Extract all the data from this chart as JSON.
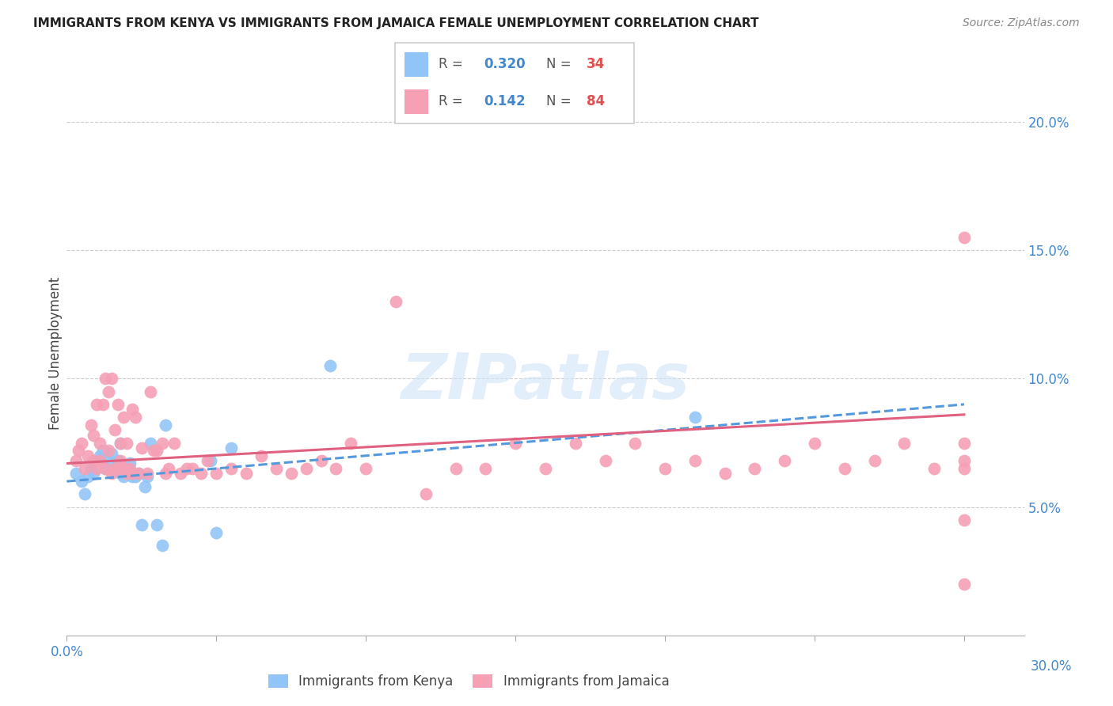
{
  "title": "IMMIGRANTS FROM KENYA VS IMMIGRANTS FROM JAMAICA FEMALE UNEMPLOYMENT CORRELATION CHART",
  "source": "Source: ZipAtlas.com",
  "ylabel": "Female Unemployment",
  "yticks": [
    0.05,
    0.1,
    0.15,
    0.2
  ],
  "ytick_labels": [
    "5.0%",
    "10.0%",
    "15.0%",
    "20.0%"
  ],
  "xlim": [
    0.0,
    0.32
  ],
  "ylim": [
    0.0,
    0.22
  ],
  "kenya_R": 0.32,
  "kenya_N": 34,
  "jamaica_R": 0.142,
  "jamaica_N": 84,
  "kenya_color": "#92c5f7",
  "jamaica_color": "#f5a0b5",
  "kenya_trend_color": "#5599dd",
  "jamaica_trend_color": "#e06080",
  "watermark": "ZIPatlas",
  "kenya_scatter_x": [
    0.003,
    0.005,
    0.006,
    0.007,
    0.008,
    0.009,
    0.01,
    0.011,
    0.012,
    0.013,
    0.014,
    0.015,
    0.016,
    0.017,
    0.018,
    0.018,
    0.019,
    0.02,
    0.021,
    0.022,
    0.023,
    0.024,
    0.025,
    0.026,
    0.027,
    0.028,
    0.03,
    0.032,
    0.033,
    0.048,
    0.05,
    0.055,
    0.088,
    0.21
  ],
  "kenya_scatter_y": [
    0.063,
    0.06,
    0.055,
    0.062,
    0.065,
    0.063,
    0.068,
    0.07,
    0.072,
    0.065,
    0.068,
    0.071,
    0.064,
    0.068,
    0.075,
    0.063,
    0.062,
    0.065,
    0.067,
    0.062,
    0.062,
    0.063,
    0.043,
    0.058,
    0.062,
    0.075,
    0.043,
    0.035,
    0.082,
    0.068,
    0.04,
    0.073,
    0.105,
    0.085
  ],
  "jamaica_scatter_x": [
    0.003,
    0.004,
    0.005,
    0.006,
    0.007,
    0.008,
    0.009,
    0.009,
    0.01,
    0.01,
    0.011,
    0.011,
    0.012,
    0.013,
    0.013,
    0.014,
    0.014,
    0.015,
    0.015,
    0.016,
    0.016,
    0.017,
    0.017,
    0.018,
    0.018,
    0.019,
    0.019,
    0.02,
    0.02,
    0.021,
    0.022,
    0.022,
    0.023,
    0.024,
    0.025,
    0.027,
    0.028,
    0.029,
    0.03,
    0.032,
    0.033,
    0.034,
    0.036,
    0.038,
    0.04,
    0.042,
    0.045,
    0.047,
    0.05,
    0.055,
    0.06,
    0.065,
    0.07,
    0.075,
    0.08,
    0.085,
    0.09,
    0.095,
    0.1,
    0.11,
    0.12,
    0.13,
    0.14,
    0.15,
    0.16,
    0.17,
    0.18,
    0.19,
    0.2,
    0.21,
    0.22,
    0.23,
    0.24,
    0.25,
    0.26,
    0.27,
    0.28,
    0.29,
    0.3,
    0.3,
    0.3,
    0.3,
    0.3,
    0.3
  ],
  "jamaica_scatter_y": [
    0.068,
    0.072,
    0.075,
    0.065,
    0.07,
    0.082,
    0.068,
    0.078,
    0.065,
    0.09,
    0.075,
    0.068,
    0.09,
    0.065,
    0.1,
    0.072,
    0.095,
    0.063,
    0.1,
    0.065,
    0.08,
    0.065,
    0.09,
    0.068,
    0.075,
    0.065,
    0.085,
    0.063,
    0.075,
    0.065,
    0.088,
    0.063,
    0.085,
    0.063,
    0.073,
    0.063,
    0.095,
    0.072,
    0.072,
    0.075,
    0.063,
    0.065,
    0.075,
    0.063,
    0.065,
    0.065,
    0.063,
    0.068,
    0.063,
    0.065,
    0.063,
    0.07,
    0.065,
    0.063,
    0.065,
    0.068,
    0.065,
    0.075,
    0.065,
    0.13,
    0.055,
    0.065,
    0.065,
    0.075,
    0.065,
    0.075,
    0.068,
    0.075,
    0.065,
    0.068,
    0.063,
    0.065,
    0.068,
    0.075,
    0.065,
    0.068,
    0.075,
    0.065,
    0.068,
    0.065,
    0.075,
    0.02,
    0.155,
    0.045
  ],
  "kenya_line_x0": 0.0,
  "kenya_line_x1": 0.3,
  "kenya_line_y0": 0.06,
  "kenya_line_y1": 0.09,
  "jamaica_line_x0": 0.0,
  "jamaica_line_x1": 0.3,
  "jamaica_line_y0": 0.067,
  "jamaica_line_y1": 0.086,
  "xtick_positions": [
    0.0,
    0.05,
    0.1,
    0.15,
    0.2,
    0.25,
    0.3
  ],
  "legend_R_color": "#4488cc",
  "legend_N_color": "#e05050",
  "legend_label_color": "#555555"
}
